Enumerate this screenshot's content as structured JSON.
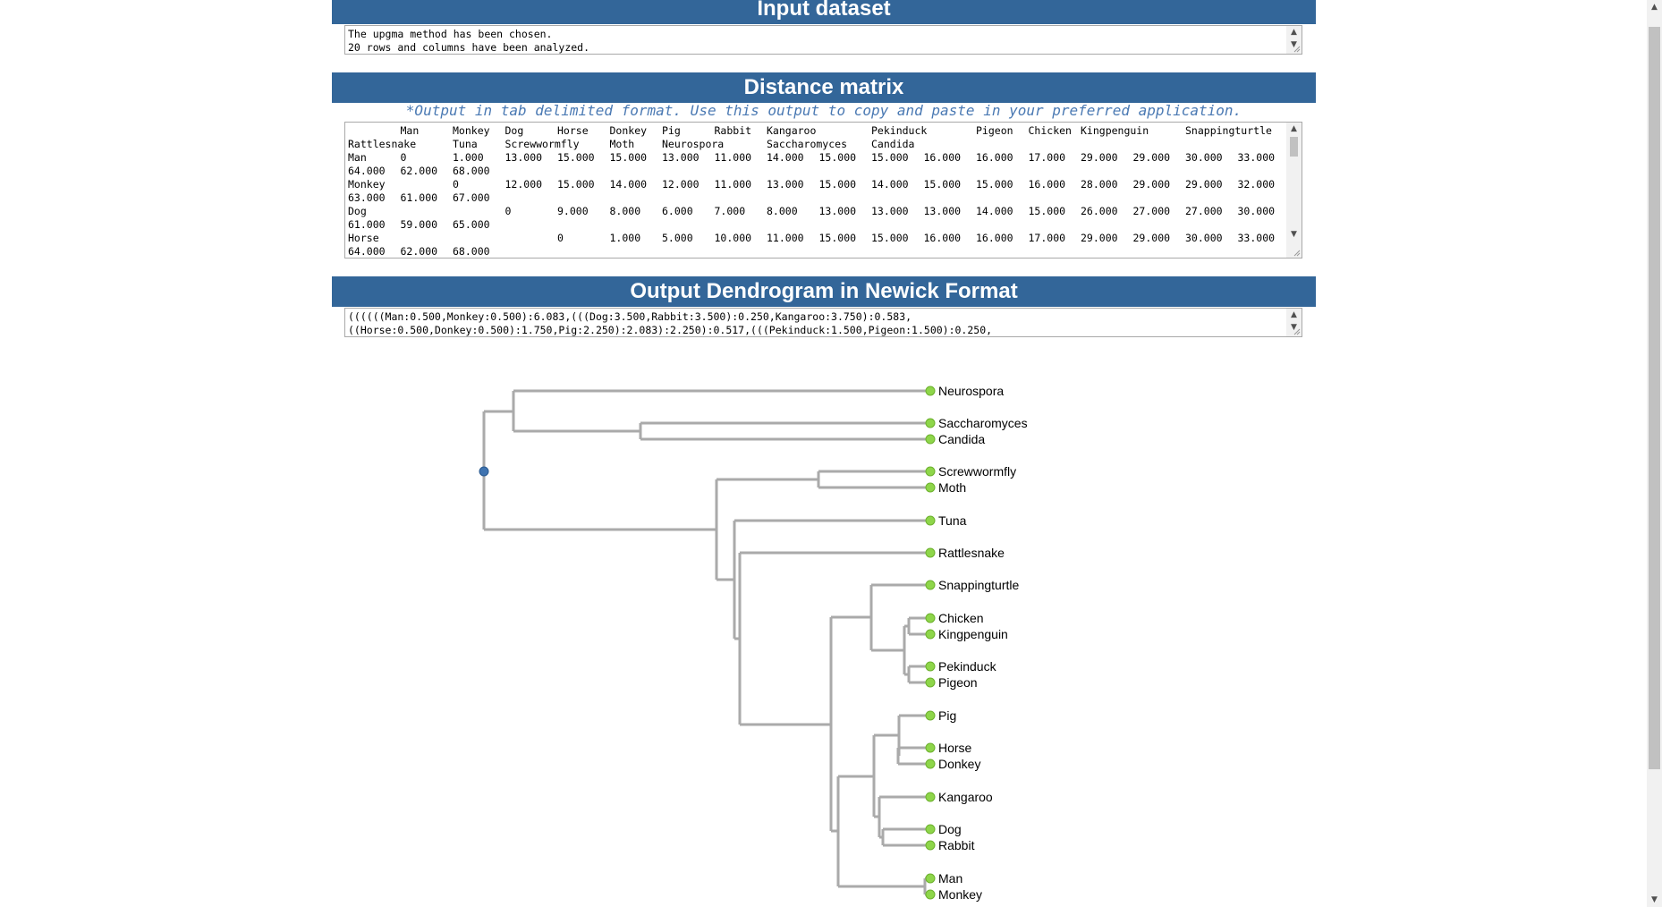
{
  "input_section": {
    "title": "Input dataset",
    "lines": [
      "The upgma method has been chosen.",
      "20 rows and columns have been analyzed."
    ]
  },
  "distance_section": {
    "title": "Distance matrix",
    "hint": "*Output in tab delimited format. Use this output to copy and paste in your preferred application.",
    "header_line1": [
      "",
      "Man",
      "Monkey",
      "Dog",
      "Horse",
      "Donkey",
      "Pig",
      "Rabbit",
      "Kangaroo",
      "",
      "Pekinduck",
      "",
      "Pigeon",
      "Chicken",
      "Kingpenguin",
      "",
      "Snappingturtle"
    ],
    "header_line2": [
      "Rattlesnake",
      "",
      "Tuna",
      "Screwwormfly",
      "",
      "Moth",
      "Neurospora",
      "",
      "Saccharomyces",
      "",
      "Candida"
    ],
    "rows": [
      {
        "name": "Man",
        "line1": [
          "Man",
          "0",
          "1.000",
          "13.000",
          "15.000",
          "15.000",
          "13.000",
          "11.000",
          "14.000",
          "15.000",
          "15.000",
          "16.000",
          "16.000",
          "17.000",
          "29.000",
          "29.000",
          "30.000",
          "33.000"
        ],
        "line2": [
          "64.000",
          "62.000",
          "68.000"
        ]
      },
      {
        "name": "Monkey",
        "line1": [
          "Monkey",
          "",
          "0",
          "12.000",
          "15.000",
          "14.000",
          "12.000",
          "11.000",
          "13.000",
          "15.000",
          "14.000",
          "15.000",
          "15.000",
          "16.000",
          "28.000",
          "29.000",
          "29.000",
          "32.000"
        ],
        "line2": [
          "63.000",
          "61.000",
          "67.000"
        ]
      },
      {
        "name": "Dog",
        "line1": [
          "Dog",
          "",
          "",
          "0",
          "9.000",
          "8.000",
          "6.000",
          "7.000",
          "8.000",
          "13.000",
          "13.000",
          "13.000",
          "14.000",
          "15.000",
          "26.000",
          "27.000",
          "27.000",
          "30.000"
        ],
        "line2": [
          "61.000",
          "59.000",
          "65.000"
        ]
      },
      {
        "name": "Horse",
        "line1": [
          "Horse",
          "",
          "",
          "",
          "0",
          "1.000",
          "5.000",
          "10.000",
          "11.000",
          "15.000",
          "15.000",
          "16.000",
          "16.000",
          "17.000",
          "29.000",
          "29.000",
          "30.000",
          "33.000"
        ],
        "line2": [
          "64.000",
          "62.000",
          "68.000"
        ]
      }
    ]
  },
  "newick_section": {
    "title": "Output Dendrogram in Newick Format",
    "lines": [
      "((((((Man:0.500,Monkey:0.500):6.083,(((Dog:3.500,Rabbit:3.500):0.250,Kangaroo:3.750):0.583,",
      "((Horse:0.500,Donkey:0.500):1.750,Pig:2.250):2.083):2.250):0.517,(((Pekinduck:1.500,Pigeon:1.500):0.250,"
    ]
  },
  "dendrogram": {
    "leaves": [
      "Neurospora",
      "Saccharomyces",
      "Candida",
      "Screwwormfly",
      "Moth",
      "Tuna",
      "Rattlesnake",
      "Snappingturtle",
      "Chicken",
      "Kingpenguin",
      "Pekinduck",
      "Pigeon",
      "Pig",
      "Horse",
      "Donkey",
      "Kangaroo",
      "Dog",
      "Rabbit",
      "Man",
      "Monkey"
    ],
    "leaf_color": "#8ed64a",
    "root_color": "#3f73b0",
    "branch_color": "#aaaaaa"
  },
  "colors": {
    "header_bg": "#336699",
    "header_text": "#ffffff",
    "hint_text": "#4a79b3"
  }
}
